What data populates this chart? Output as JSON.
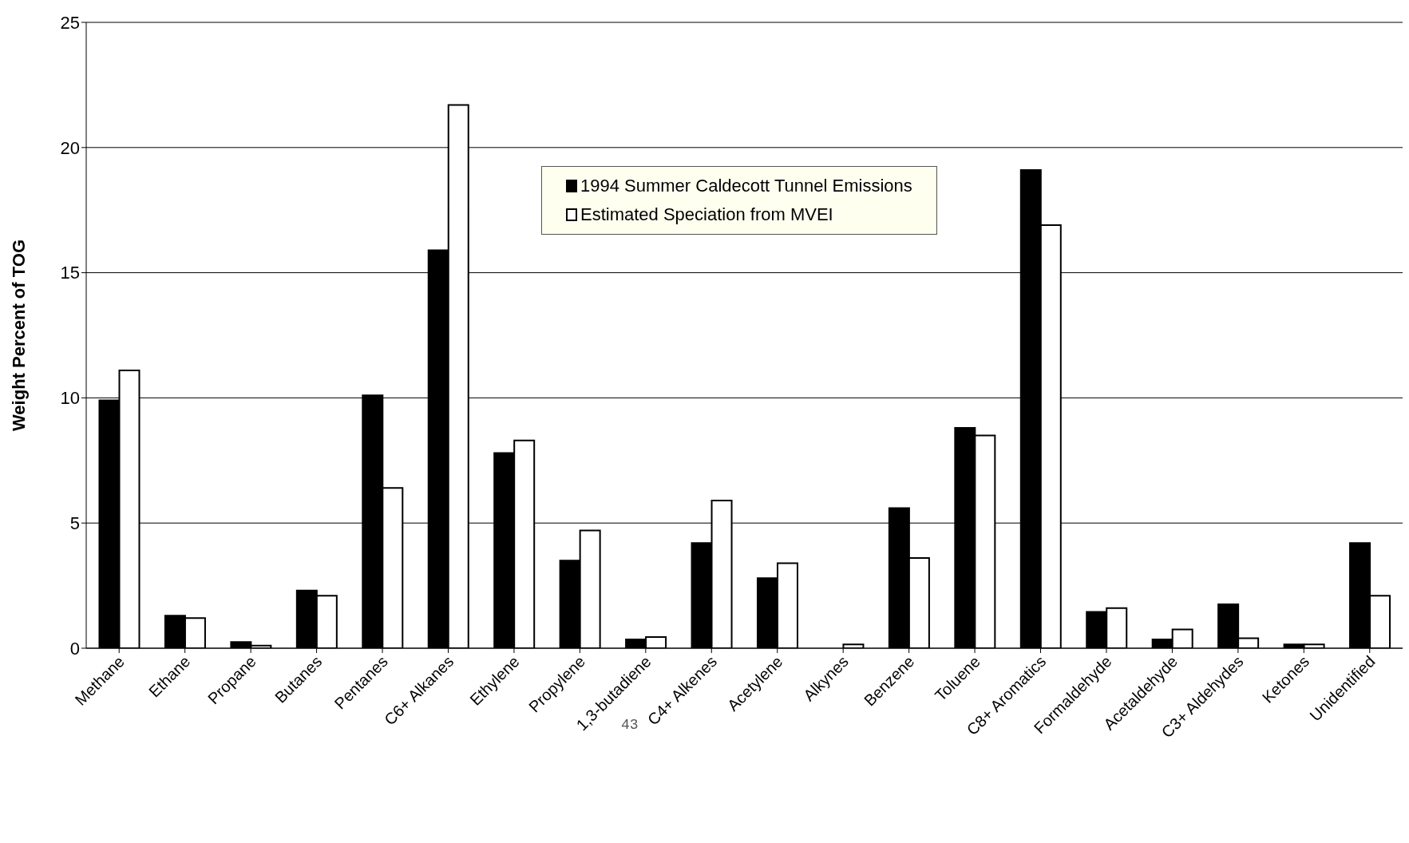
{
  "chart_data": {
    "type": "bar",
    "ylabel": "Weight Percent of TOG",
    "categories": [
      "Methane",
      "Ethane",
      "Propane",
      "Butanes",
      "Pentanes",
      "C6+ Alkanes",
      "Ethylene",
      "Propylene",
      "1,3-butadiene",
      "C4+ Alkenes",
      "Acetylene",
      "Alkynes",
      "Benzene",
      "Toluene",
      "C8+ Aromatics",
      "Formaldehyde",
      "Acetaldehyde",
      "C3+ Aldehydes",
      "Ketones",
      "Unidentified"
    ],
    "series": [
      {
        "name": "1994 Summer Caldecott Tunnel Emissions",
        "color": "#000000",
        "values": [
          9.9,
          1.3,
          0.25,
          2.3,
          10.1,
          15.9,
          7.8,
          3.5,
          0.35,
          4.2,
          2.8,
          0,
          5.6,
          8.8,
          19.1,
          1.45,
          0.35,
          1.75,
          0.15,
          4.2
        ]
      },
      {
        "name": "Estimated Speciation from MVEI",
        "color": "#ffffff",
        "values": [
          11.1,
          1.2,
          0.1,
          2.1,
          6.4,
          21.7,
          8.3,
          4.7,
          0.45,
          5.9,
          3.4,
          0.15,
          3.6,
          8.5,
          16.9,
          1.6,
          0.75,
          0.4,
          0.15,
          2.1
        ]
      }
    ],
    "ylim": [
      0,
      25
    ],
    "yticks": [
      0,
      5,
      10,
      15,
      20,
      25
    ],
    "grid": "y",
    "legend": "top",
    "annotations": [
      "43"
    ]
  }
}
